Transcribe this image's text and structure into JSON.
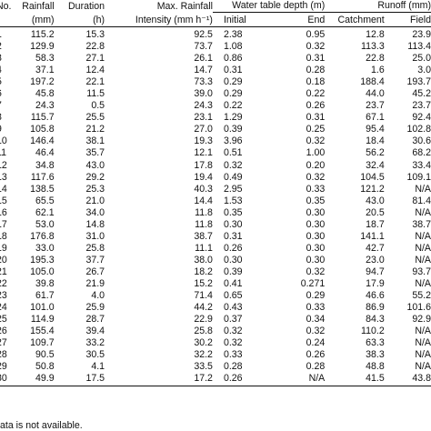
{
  "table": {
    "header_row1": {
      "no": "No.",
      "rainfall": "Rainfall",
      "duration": "Duration",
      "max_rainfall": "Max. Rainfall",
      "water_table": "Water table depth (m)",
      "runoff": "Runoff (mm)"
    },
    "header_row2": {
      "rainfall_unit": "(mm)",
      "duration_unit": "(h)",
      "intensity": "Intensity (mm h⁻¹)",
      "initial": "Initial",
      "end": "End",
      "catchment": "Catchment",
      "field": "Field"
    },
    "rows": [
      [
        "1",
        "115.2",
        "15.3",
        "92.5",
        "2.38",
        "0.95",
        "12.8",
        "23.9"
      ],
      [
        "2",
        "129.9",
        "22.8",
        "73.7",
        "1.08",
        "0.32",
        "113.3",
        "113.4"
      ],
      [
        "3",
        "58.3",
        "27.1",
        "26.1",
        "0.86",
        "0.31",
        "22.8",
        "25.0"
      ],
      [
        "4",
        "37.1",
        "12.4",
        "14.7",
        "0.31",
        "0.28",
        "1.6",
        "3.0"
      ],
      [
        "5",
        "197.2",
        "22.1",
        "73.3",
        "0.29",
        "0.18",
        "188.4",
        "193.7"
      ],
      [
        "6",
        "45.8",
        "11.5",
        "39.0",
        "0.29",
        "0.22",
        "44.0",
        "45.2"
      ],
      [
        "7",
        "24.3",
        "0.5",
        "24.3",
        "0.22",
        "0.26",
        "23.7",
        "23.7"
      ],
      [
        "8",
        "115.7",
        "25.5",
        "23.1",
        "1.29",
        "0.31",
        "67.1",
        "92.4"
      ],
      [
        "9",
        "105.8",
        "21.2",
        "27.0",
        "0.39",
        "0.25",
        "95.4",
        "102.8"
      ],
      [
        "10",
        "146.4",
        "38.1",
        "19.3",
        "3.96",
        "0.32",
        "18.4",
        "30.6"
      ],
      [
        "11",
        "46.4",
        "35.7",
        "12.1",
        "0.51",
        "1.00",
        "56.2",
        "68.2"
      ],
      [
        "12",
        "34.8",
        "43.0",
        "17.8",
        "0.32",
        "0.20",
        "32.4",
        "33.4"
      ],
      [
        "13",
        "117.6",
        "29.2",
        "19.4",
        "0.49",
        "0.32",
        "104.5",
        "109.1"
      ],
      [
        "14",
        "138.5",
        "25.3",
        "40.3",
        "2.95",
        "0.33",
        "121.2",
        "N/A"
      ],
      [
        "15",
        "65.5",
        "21.0",
        "14.4",
        "1.53",
        "0.35",
        "43.0",
        "81.4"
      ],
      [
        "16",
        "62.1",
        "34.0",
        "11.8",
        "0.35",
        "0.30",
        "20.5",
        "N/A"
      ],
      [
        "17",
        "53.0",
        "14.8",
        "11.8",
        "0.30",
        "0.30",
        "18.7",
        "38.7"
      ],
      [
        "18",
        "176.8",
        "31.0",
        "38.7",
        "0.31",
        "0.30",
        "141.1",
        "N/A"
      ],
      [
        "19",
        "33.0",
        "25.8",
        "11.1",
        "0.26",
        "0.30",
        "42.7",
        "N/A"
      ],
      [
        "20",
        "195.3",
        "37.7",
        "38.0",
        "0.30",
        "0.30",
        "23.0",
        "N/A"
      ],
      [
        "21",
        "105.0",
        "26.7",
        "18.2",
        "0.39",
        "0.32",
        "94.7",
        "93.7"
      ],
      [
        "22",
        "39.8",
        "21.9",
        "15.2",
        "0.41",
        "0.271",
        "17.9",
        "N/A"
      ],
      [
        "23",
        "61.7",
        "4.0",
        "71.4",
        "0.65",
        "0.29",
        "46.6",
        "55.2"
      ],
      [
        "24",
        "101.0",
        "25.9",
        "44.2",
        "0.43",
        "0.33",
        "86.9",
        "101.6"
      ],
      [
        "25",
        "114.9",
        "28.7",
        "22.9",
        "0.37",
        "0.34",
        "84.3",
        "92.9"
      ],
      [
        "26",
        "155.4",
        "39.4",
        "25.8",
        "0.32",
        "0.32",
        "110.2",
        "N/A"
      ],
      [
        "27",
        "109.7",
        "33.2",
        "30.2",
        "0.32",
        "0.24",
        "63.3",
        "N/A"
      ],
      [
        "28",
        "90.5",
        "30.5",
        "32.2",
        "0.33",
        "0.26",
        "38.3",
        "N/A"
      ],
      [
        "29",
        "50.8",
        "4.1",
        "33.5",
        "0.28",
        "0.28",
        "48.8",
        "N/A"
      ],
      [
        "30",
        "49.9",
        "17.5",
        "17.2",
        "0.26",
        "N/A",
        "41.5",
        "43.8"
      ]
    ]
  },
  "footnote": "ata is not available."
}
